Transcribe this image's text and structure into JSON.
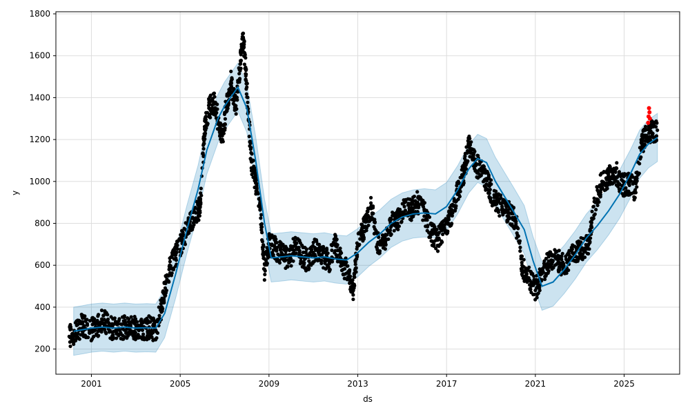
{
  "chart_data": {
    "type": "scatter",
    "title": "",
    "xlabel": "ds",
    "ylabel": "y",
    "xlim": [
      1999.4,
      2027.5
    ],
    "ylim": [
      80,
      1810
    ],
    "xticks": [
      2001,
      2005,
      2009,
      2013,
      2017,
      2021,
      2025
    ],
    "xtick_labels": [
      "2001",
      "2005",
      "2009",
      "2013",
      "2017",
      "2021",
      "2025"
    ],
    "yticks": [
      200,
      400,
      600,
      800,
      1000,
      1200,
      1400,
      1600,
      1800
    ],
    "ytick_labels": [
      "200",
      "400",
      "600",
      "800",
      "1000",
      "1200",
      "1400",
      "1600",
      "1800"
    ],
    "grid": true,
    "colors": {
      "observed": "#000000",
      "recent_observed": "#ff0000",
      "forecast_line": "#0072b2",
      "uncertainty_band": "#0072b2"
    },
    "series": [
      {
        "kind": "forecast",
        "x": [
          2000.2,
          2000.6,
          2001.0,
          2001.5,
          2002.0,
          2002.5,
          2003.0,
          2003.5,
          2003.9,
          2004.3,
          2004.8,
          2005.3,
          2005.8,
          2006.2,
          2006.7,
          2007.0,
          2007.4,
          2007.6,
          2008.0,
          2008.4,
          2008.8,
          2009.1,
          2009.6,
          2010.0,
          2010.5,
          2011.0,
          2011.5,
          2012.0,
          2012.5,
          2013.0,
          2013.5,
          2014.0,
          2014.5,
          2015.0,
          2015.5,
          2016.0,
          2016.5,
          2017.0,
          2017.5,
          2018.0,
          2018.4,
          2018.8,
          2019.2,
          2019.6,
          2020.0,
          2020.5,
          2020.9,
          2021.3,
          2021.8,
          2022.3,
          2022.8,
          2023.3,
          2023.8,
          2024.3,
          2024.8,
          2025.3,
          2025.7,
          2026.1,
          2026.5
        ],
        "y": [
          285,
          292,
          300,
          305,
          300,
          305,
          300,
          302,
          300,
          370,
          560,
          770,
          960,
          1150,
          1300,
          1360,
          1420,
          1450,
          1350,
          1100,
          800,
          635,
          640,
          645,
          640,
          635,
          640,
          630,
          625,
          660,
          710,
          750,
          800,
          830,
          845,
          850,
          845,
          880,
          960,
          1060,
          1110,
          1090,
          1000,
          930,
          860,
          770,
          620,
          500,
          520,
          580,
          650,
          730,
          790,
          860,
          940,
          1040,
          1130,
          1180,
          1210
        ],
        "band_width": 115
      },
      {
        "kind": "observed",
        "x": [
          2000.0,
          2000.3,
          2000.6,
          2000.9,
          2001.2,
          2001.5,
          2001.8,
          2002.1,
          2002.4,
          2002.7,
          2003.0,
          2003.3,
          2003.6,
          2003.9,
          2004.2,
          2004.5,
          2004.8,
          2005.1,
          2005.4,
          2005.7,
          2005.9,
          2006.1,
          2006.3,
          2006.5,
          2006.7,
          2006.9,
          2007.1,
          2007.3,
          2007.5,
          2007.7,
          2007.85,
          2008.0,
          2008.2,
          2008.4,
          2008.6,
          2008.8,
          2009.0,
          2009.3,
          2009.6,
          2009.9,
          2010.2,
          2010.5,
          2010.8,
          2011.1,
          2011.4,
          2011.7,
          2012.0,
          2012.3,
          2012.6,
          2012.8,
          2013.0,
          2013.3,
          2013.6,
          2013.9,
          2014.2,
          2014.5,
          2014.8,
          2015.1,
          2015.4,
          2015.7,
          2016.0,
          2016.3,
          2016.6,
          2016.9,
          2017.2,
          2017.5,
          2017.8,
          2018.0,
          2018.3,
          2018.6,
          2018.9,
          2019.2,
          2019.5,
          2019.8,
          2020.1,
          2020.4,
          2020.7,
          2021.0,
          2021.3,
          2021.6,
          2021.9,
          2022.2,
          2022.5,
          2022.8,
          2023.1,
          2023.4,
          2023.7,
          2024.0,
          2024.3,
          2024.6,
          2024.9,
          2025.2,
          2025.5,
          2025.8,
          2026.0,
          2026.2
        ],
        "y": [
          260,
          275,
          320,
          290,
          300,
          340,
          310,
          290,
          300,
          310,
          300,
          290,
          305,
          290,
          420,
          580,
          650,
          720,
          800,
          850,
          880,
          1250,
          1350,
          1380,
          1300,
          1200,
          1380,
          1480,
          1350,
          1560,
          1680,
          1450,
          1100,
          1000,
          900,
          580,
          700,
          680,
          650,
          620,
          700,
          640,
          620,
          680,
          640,
          620,
          700,
          600,
          560,
          480,
          700,
          780,
          880,
          700,
          720,
          800,
          820,
          880,
          860,
          900,
          860,
          750,
          720,
          780,
          840,
          950,
          1050,
          1180,
          1080,
          1050,
          980,
          900,
          880,
          850,
          820,
          600,
          540,
          480,
          560,
          620,
          640,
          600,
          620,
          660,
          680,
          700,
          900,
          1000,
          1020,
          1050,
          980,
          990,
          960,
          1180,
          1220,
          1240
        ]
      },
      {
        "kind": "recent_observed",
        "x": [
          2026.08,
          2026.1,
          2026.12,
          2026.14,
          2026.16
        ],
        "y": [
          1280,
          1310,
          1350,
          1330,
          1300
        ]
      }
    ]
  }
}
